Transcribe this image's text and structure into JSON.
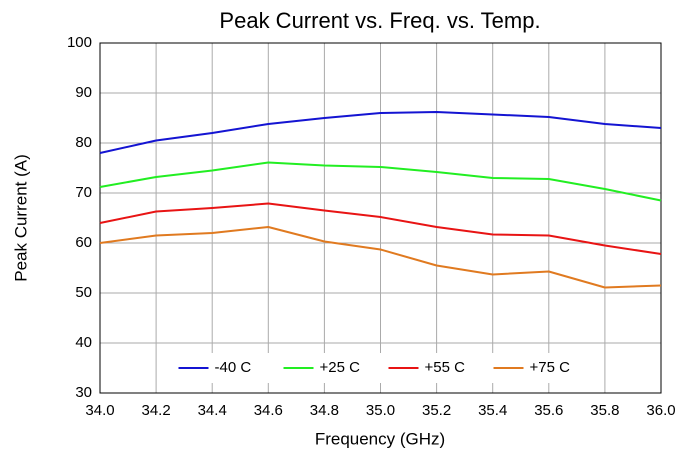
{
  "chart_data": {
    "type": "line",
    "title": "Peak Current vs. Freq. vs. Temp.",
    "x_label": "Frequency (GHz)",
    "y_label": "Peak Current (A)",
    "x": [
      34.0,
      34.2,
      34.4,
      34.6,
      34.8,
      35.0,
      35.2,
      35.4,
      35.6,
      35.8,
      36.0
    ],
    "series": [
      {
        "name": "-40 C",
        "color": "#1414d2",
        "values": [
          78,
          80.5,
          82,
          83.8,
          85,
          86,
          86.2,
          85.7,
          85.2,
          83.8,
          83
        ]
      },
      {
        "name": "+25 C",
        "color": "#22ee22",
        "values": [
          71.2,
          73.2,
          74.5,
          76.1,
          75.5,
          75.2,
          74.2,
          73,
          72.8,
          70.8,
          68.5
        ]
      },
      {
        "name": "+55 C",
        "color": "#e81414",
        "values": [
          64,
          66.3,
          67,
          67.9,
          66.5,
          65.2,
          63.2,
          61.7,
          61.5,
          59.5,
          57.8
        ]
      },
      {
        "name": "+75 C",
        "color": "#e07a20",
        "values": [
          60,
          61.5,
          62,
          63.2,
          60.3,
          58.7,
          55.5,
          53.7,
          54.3,
          51.1,
          51.5
        ]
      }
    ],
    "xlim": [
      34,
      36
    ],
    "xticks": [
      {
        "value": 34,
        "label": "34.0"
      },
      34.2,
      34.4,
      34.6,
      34.8,
      {
        "value": 35,
        "label": "35.0"
      },
      35.2,
      35.4,
      35.6,
      35.8,
      {
        "value": 36,
        "label": "36.0"
      }
    ],
    "ylim": [
      30,
      100
    ],
    "yticks": [
      30,
      40,
      50,
      60,
      70,
      80,
      90,
      100
    ],
    "grid": true,
    "legend": "lower center"
  }
}
